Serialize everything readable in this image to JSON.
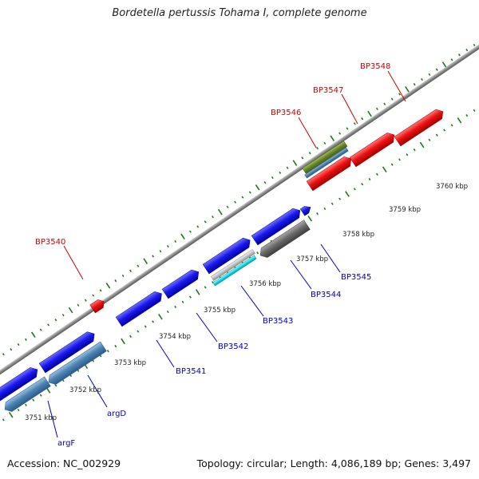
{
  "header": {
    "title": "Bordetella pertussis Tohama I, complete genome"
  },
  "footer": {
    "accession": "Accession: NC_002929",
    "summary": "Topology: circular; Length: 4,086,189 bp; Genes: 3,497"
  },
  "colors": {
    "backbone": "#8a8a8a",
    "tick": "#1a7a1a",
    "gene_blue": "#1a1aee",
    "gene_red": "#ee1111",
    "gene_steel": "#4d84b4",
    "gene_olive": "#6b8a2a",
    "gene_gray": "#6b6b6b",
    "gene_cyan": "#22ddee",
    "label_red": "#cc0000",
    "label_blue": "#0000bb"
  },
  "scale_labels": [
    "3751 kbp",
    "3752 kbp",
    "3753 kbp",
    "3754 kbp",
    "3755 kbp",
    "3756 kbp",
    "3757 kbp",
    "3758 kbp",
    "3759 kbp",
    "3760 kbp"
  ],
  "gene_labels": [
    "BP3540",
    "BP3541",
    "BP3542",
    "BP3543",
    "BP3544",
    "BP3545",
    "BP3546",
    "BP3547",
    "BP3548",
    "argD",
    "argF"
  ]
}
